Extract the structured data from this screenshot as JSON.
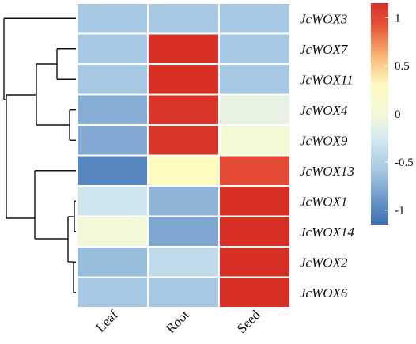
{
  "chart_data": {
    "type": "heatmap",
    "columns": [
      "Leaf",
      "Root",
      "Seed"
    ],
    "rows": [
      "JcWOX3",
      "JcWOX7",
      "JcWOX11",
      "JcWOX4",
      "JcWOX9",
      "JcWOX13",
      "JcWOX1",
      "JcWOX14",
      "JcWOX2",
      "JcWOX6"
    ],
    "values": [
      [
        -0.58,
        -0.58,
        -0.58
      ],
      [
        -0.58,
        1.15,
        -0.58
      ],
      [
        -0.58,
        1.15,
        -0.58
      ],
      [
        -0.75,
        1.12,
        -0.1
      ],
      [
        -0.78,
        1.12,
        0.05
      ],
      [
        -1.0,
        0.3,
        0.98
      ],
      [
        -0.3,
        -0.7,
        1.15
      ],
      [
        0.0,
        -0.8,
        1.15
      ],
      [
        -0.65,
        -0.4,
        1.15
      ],
      [
        -0.58,
        -0.58,
        1.15
      ]
    ],
    "color_scale": {
      "min": -1.15,
      "max": 1.15,
      "stops": [
        {
          "v": -1.15,
          "color": "#3c6fb1"
        },
        {
          "v": -0.58,
          "color": "#a6c8e3"
        },
        {
          "v": -0.25,
          "color": "#d6eaf0"
        },
        {
          "v": 0.0,
          "color": "#f3f8d8"
        },
        {
          "v": 0.3,
          "color": "#fefbbf"
        },
        {
          "v": 0.6,
          "color": "#f8b873"
        },
        {
          "v": 0.9,
          "color": "#e9573a"
        },
        {
          "v": 1.15,
          "color": "#d63027"
        }
      ]
    },
    "legend_ticks": [
      1,
      0.5,
      0,
      -0.5,
      -1
    ],
    "legend_tick_labels": [
      "1",
      "0.5",
      "0",
      "-0.5",
      "-1"
    ],
    "dendrogram": "row clustering tree on the left",
    "legend_placement": "right"
  }
}
